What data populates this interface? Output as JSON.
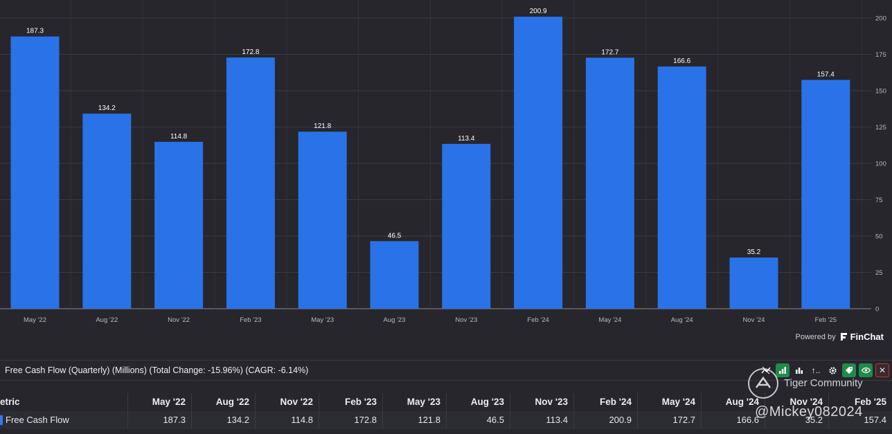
{
  "chart_data": {
    "type": "bar",
    "title": "Free Cash Flow (Quarterly) (Millions)",
    "categories": [
      "May '22",
      "Aug '22",
      "Nov '22",
      "Feb '23",
      "May '23",
      "Aug '23",
      "Nov '23",
      "Feb '24",
      "May '24",
      "Aug '24",
      "Nov '24",
      "Feb '25"
    ],
    "values": [
      187.3,
      134.2,
      114.8,
      172.8,
      121.8,
      46.5,
      113.4,
      200.9,
      172.7,
      166.6,
      35.2,
      157.4
    ],
    "value_labels": [
      "187.3",
      "134.2",
      "114.8",
      "172.8",
      "121.8",
      "46.5",
      "113.4",
      "200.9",
      "172.7",
      "166.6",
      "35.2",
      "157.4"
    ],
    "yticks": [
      0,
      25,
      50,
      75,
      100,
      125,
      150,
      175,
      200
    ],
    "ylim": [
      0,
      200
    ],
    "ylabel_position": "right",
    "grid": true,
    "series_color": "#2a72e8"
  },
  "branding": {
    "powered_by": "Powered by",
    "brand_name": "FinChat"
  },
  "info_bar": {
    "text": "Free Cash Flow (Quarterly) (Millions) (Total Change: -15.96%) (CAGR: -6.14%)"
  },
  "toolbar": {
    "icons": [
      "trend-off-icon",
      "bar-chart-icon",
      "bar-chart-alt-icon",
      "sort-icon",
      "gear-icon",
      "tag-icon",
      "eye-icon",
      "close-icon"
    ],
    "sort_glyph": "↑..",
    "close_glyph": "✕"
  },
  "table": {
    "metric_header": "etric",
    "columns": [
      "May '22",
      "Aug '22",
      "Nov '22",
      "Feb '23",
      "May '23",
      "Aug '23",
      "Nov '23",
      "Feb '24",
      "May '24",
      "Aug '24",
      "Nov '24",
      "Feb '25"
    ],
    "rows": [
      {
        "metric": "Free Cash Flow",
        "values": [
          "187.3",
          "134.2",
          "114.8",
          "172.8",
          "121.8",
          "46.5",
          "113.4",
          "200.9",
          "172.7",
          "166.6",
          "35.2",
          "157.4"
        ]
      }
    ]
  },
  "watermark": {
    "title": "Tiger Community",
    "handle": "@Mickey082024"
  },
  "colors": {
    "background": "#26262c",
    "bar": "#2a72e8",
    "accent_green": "#1f8a4c",
    "close_red": "#c0392b"
  }
}
